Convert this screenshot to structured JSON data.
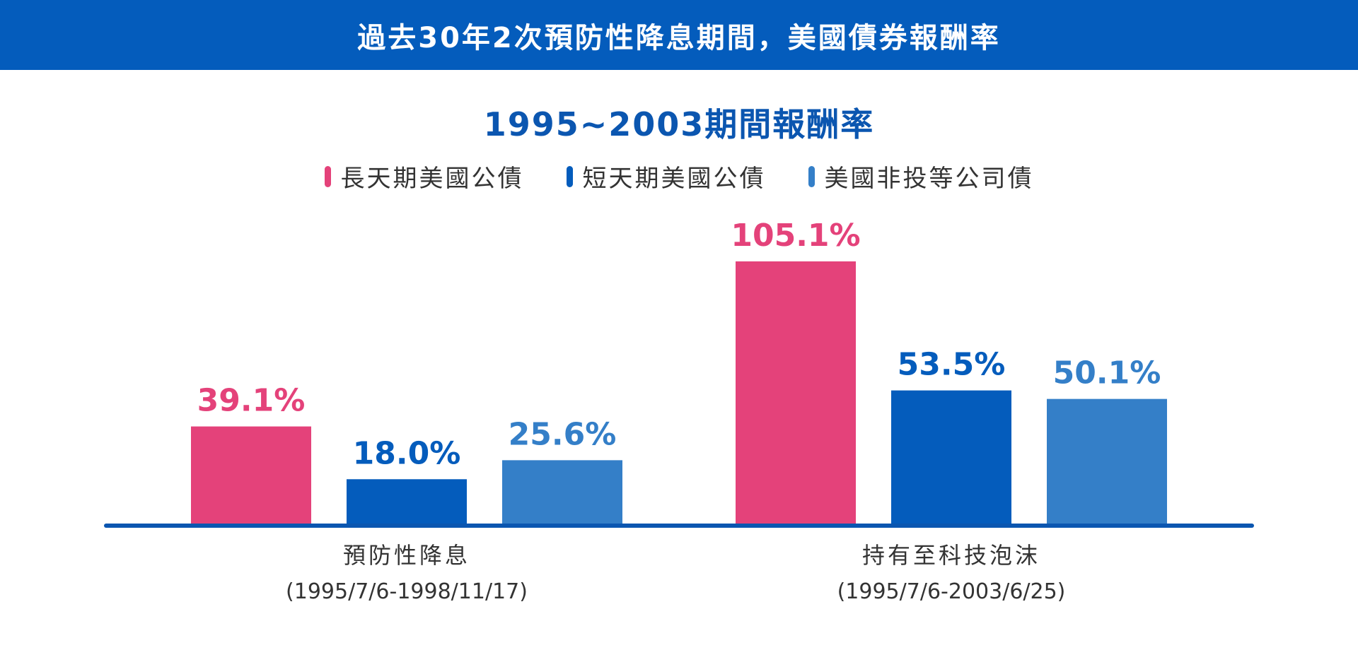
{
  "header": {
    "title": "過去30年2次預防性降息期間，美國債券報酬率"
  },
  "chart_data": {
    "type": "bar",
    "title": "1995~2003期間報酬率",
    "categories": [
      {
        "label": "預防性降息",
        "sublabel": "(1995/7/6-1998/11/17)"
      },
      {
        "label": "持有至科技泡沫",
        "sublabel": "(1995/7/6-2003/6/25)"
      }
    ],
    "series": [
      {
        "name": "長天期美國公債",
        "color": "#e4427a",
        "values": [
          39.1,
          105.1
        ],
        "labels": [
          "39.1%",
          "105.1%"
        ]
      },
      {
        "name": "短天期美國公債",
        "color": "#045cbc",
        "values": [
          18.0,
          53.5
        ],
        "labels": [
          "18.0%",
          "53.5%"
        ]
      },
      {
        "name": "美國非投等公司債",
        "color": "#347fc8",
        "values": [
          25.6,
          50.1
        ],
        "labels": [
          "25.6%",
          "50.1%"
        ]
      }
    ],
    "ylim": [
      0,
      110
    ],
    "grid": false,
    "legend_position": "top-center",
    "axis_color": "#0b56b0"
  }
}
